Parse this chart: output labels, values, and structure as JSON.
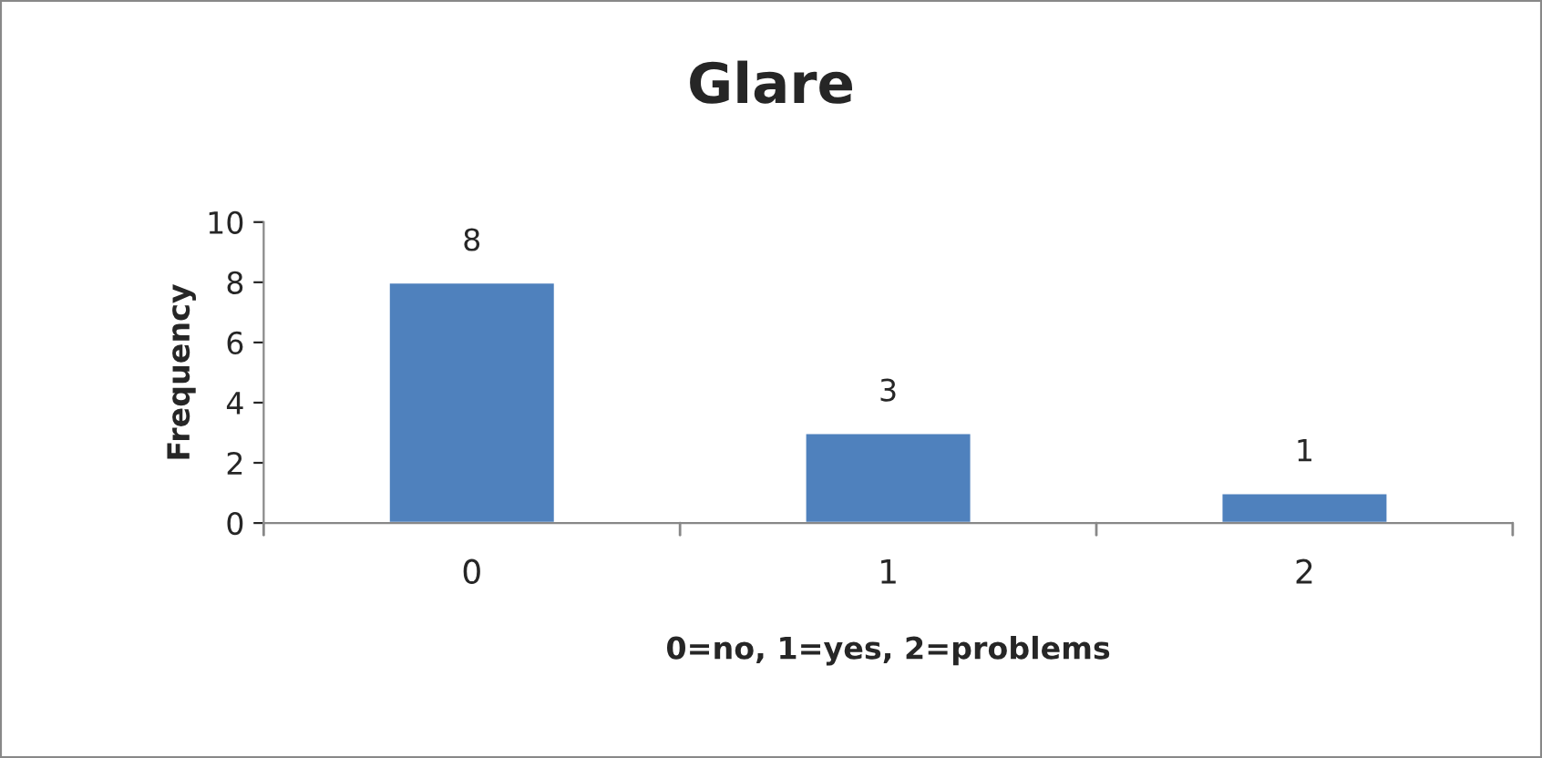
{
  "chart_data": {
    "type": "bar",
    "title": "Glare",
    "xlabel": "0=no, 1=yes, 2=problems",
    "ylabel": "Frequency",
    "categories": [
      "0",
      "1",
      "2"
    ],
    "values": [
      8,
      3,
      1
    ],
    "color": "#4f81bd",
    "ylim": [
      0,
      10
    ],
    "yticks": [
      0,
      2,
      4,
      6,
      8,
      10
    ],
    "grid": false,
    "legend": false,
    "data_labels": true
  }
}
